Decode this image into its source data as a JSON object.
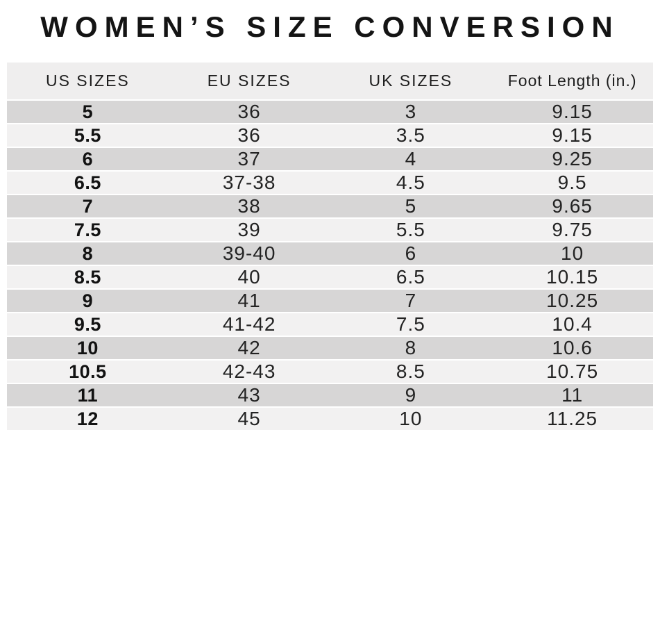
{
  "chart_data": {
    "type": "table",
    "title": "WOMEN’S SIZE CONVERSION",
    "columns": [
      "US SIZES",
      "EU SIZES",
      "UK SIZES",
      "Foot Length (in.)"
    ],
    "rows": [
      [
        "5",
        "36",
        "3",
        "9.15"
      ],
      [
        "5.5",
        "36",
        "3.5",
        "9.15"
      ],
      [
        "6",
        "37",
        "4",
        "9.25"
      ],
      [
        "6.5",
        "37-38",
        "4.5",
        "9.5"
      ],
      [
        "7",
        "38",
        "5",
        "9.65"
      ],
      [
        "7.5",
        "39",
        "5.5",
        "9.75"
      ],
      [
        "8",
        "39-40",
        "6",
        "10"
      ],
      [
        "8.5",
        "40",
        "6.5",
        "10.15"
      ],
      [
        "9",
        "41",
        "7",
        "10.25"
      ],
      [
        "9.5",
        "41-42",
        "7.5",
        "10.4"
      ],
      [
        "10",
        "42",
        "8",
        "10.6"
      ],
      [
        "10.5",
        "42-43",
        "8.5",
        "10.75"
      ],
      [
        "11",
        "43",
        "9",
        "11"
      ],
      [
        "12",
        "45",
        "10",
        "11.25"
      ]
    ]
  },
  "colors": {
    "background": "#ffffff",
    "header_bg": "#efeeee",
    "row_dark": "#d7d6d6",
    "row_light": "#f2f1f1",
    "separator": "#ffffff",
    "title_text": "#141414",
    "cell_text": "#232323"
  }
}
